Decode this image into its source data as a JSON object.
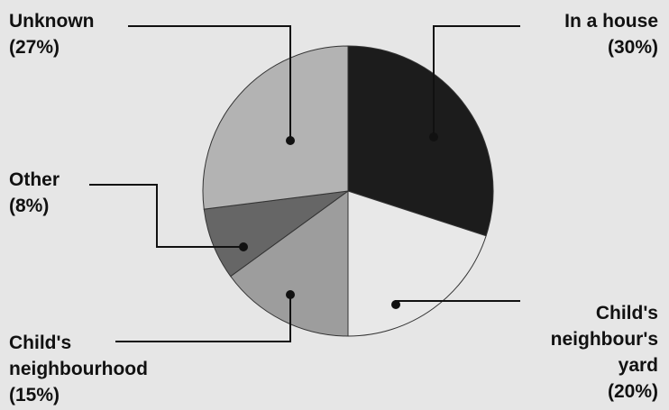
{
  "chart_data": {
    "type": "pie",
    "title": "",
    "slices": [
      {
        "label_lines": [
          "In a house",
          "(30%)"
        ],
        "value": 30,
        "color": "#1c1c1c"
      },
      {
        "label_lines": [
          "Child's",
          "neighbour's",
          "yard",
          "(20%)"
        ],
        "value": 20,
        "color": "#e8e8e8"
      },
      {
        "label_lines": [
          "Child's",
          "neighbourhood",
          "(15%)"
        ],
        "value": 15,
        "color": "#9d9d9d"
      },
      {
        "label_lines": [
          "Other",
          "(8%)"
        ],
        "value": 8,
        "color": "#666666"
      },
      {
        "label_lines": [
          "Unknown",
          "(27%)"
        ],
        "value": 27,
        "color": "#b3b3b3"
      }
    ],
    "start_angle": "12 o'clock",
    "direction": "clockwise",
    "background": "#e6e6e6",
    "leader_color": "#111111"
  }
}
